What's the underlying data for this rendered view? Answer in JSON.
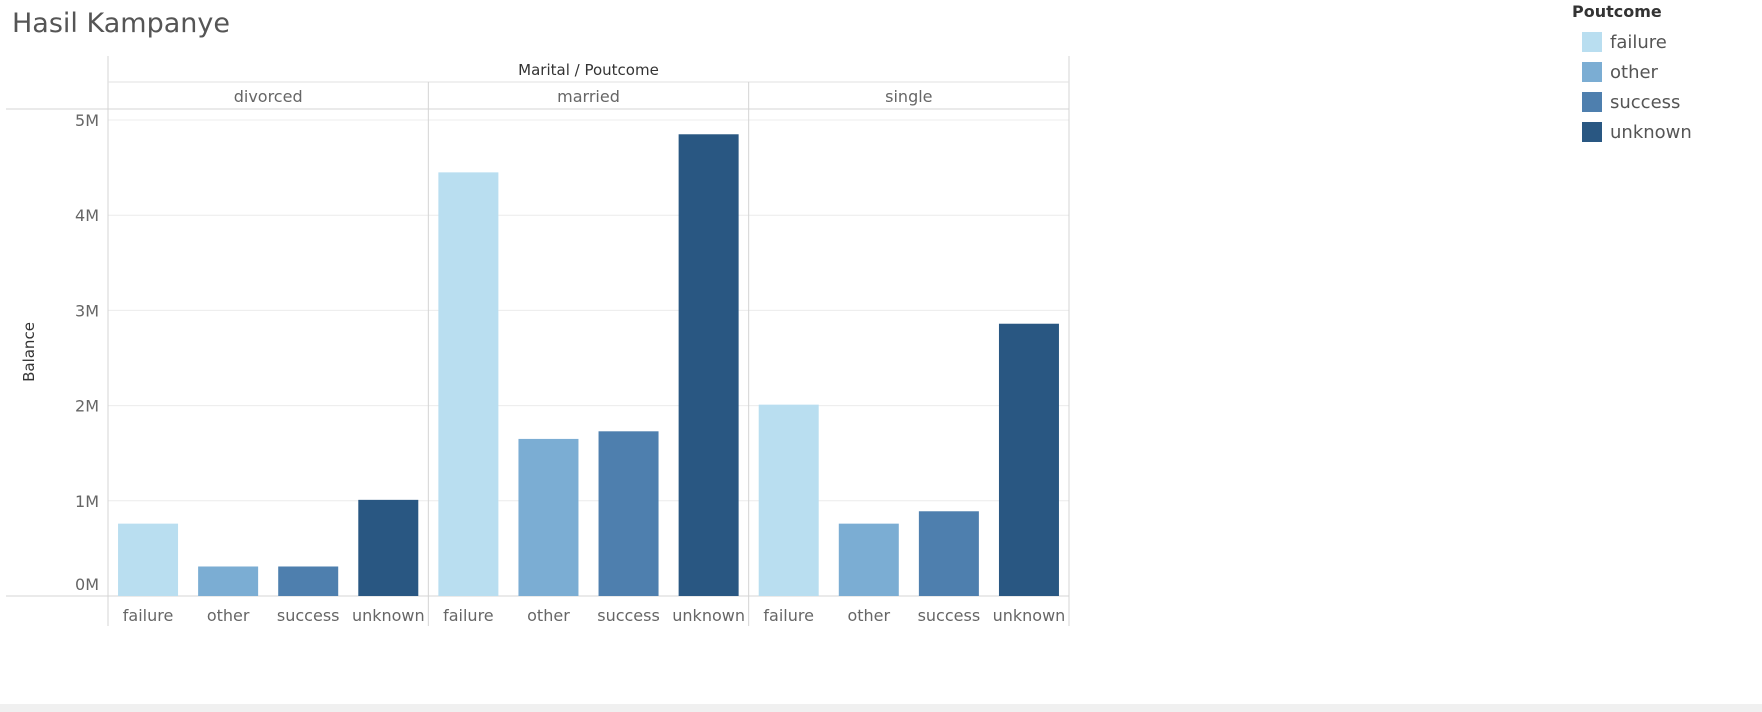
{
  "title": "Hasil Kampanye",
  "legend": {
    "title": "Poutcome",
    "items": [
      {
        "label": "failure",
        "color": "#b9def0"
      },
      {
        "label": "other",
        "color": "#7badd3"
      },
      {
        "label": "success",
        "color": "#4e7fae"
      },
      {
        "label": "unknown",
        "color": "#295782"
      }
    ]
  },
  "chart_data": {
    "type": "bar",
    "header": "Marital / Poutcome",
    "ylabel": "Balance",
    "ylim": [
      0,
      5000000
    ],
    "yticks": [
      {
        "value": 0,
        "label": "0M"
      },
      {
        "value": 1000000,
        "label": "1M"
      },
      {
        "value": 2000000,
        "label": "2M"
      },
      {
        "value": 3000000,
        "label": "3M"
      },
      {
        "value": 4000000,
        "label": "4M"
      },
      {
        "value": 5000000,
        "label": "5M"
      }
    ],
    "grid": true,
    "categories": [
      "failure",
      "other",
      "success",
      "unknown"
    ],
    "groups": [
      {
        "name": "divorced",
        "values": [
          760000,
          310000,
          310000,
          1010000
        ]
      },
      {
        "name": "married",
        "values": [
          4450000,
          1650000,
          1730000,
          4850000
        ]
      },
      {
        "name": "single",
        "values": [
          2010000,
          760000,
          890000,
          2860000
        ]
      }
    ]
  }
}
